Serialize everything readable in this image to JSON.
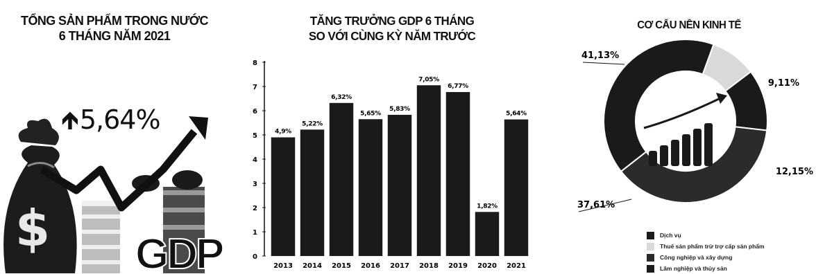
{
  "left_panel": {
    "title_line1": "TỔNG SẢN PHẨM TRONG NƯỚC",
    "title_line2": "6 THÁNG NĂM 2021",
    "growth_value": "5,64%",
    "illustration_text": "GDP",
    "money_symbol": "$"
  },
  "mid_panel": {
    "title_line1": "TĂNG TRƯỞNG GDP 6 THÁNG",
    "title_line2": "SO VỚI CÙNG KỲ NĂM TRƯỚC"
  },
  "right_panel": {
    "title": "CƠ CẤU NỀN KINH TẾ"
  },
  "chart_data": [
    {
      "type": "bar",
      "title": "TĂNG TRƯỞNG GDP 6 THÁNG SO VỚI CÙNG KỲ NĂM TRƯỚC",
      "categories": [
        "2013",
        "2014",
        "2015",
        "2016",
        "2017",
        "2018",
        "2019",
        "2020",
        "2021"
      ],
      "values": [
        4.9,
        5.22,
        6.32,
        5.65,
        5.83,
        7.05,
        6.77,
        1.82,
        5.64
      ],
      "data_labels": [
        "4,9%",
        "5,22%",
        "6,32%",
        "5,65%",
        "5,83%",
        "7,05%",
        "6,77%",
        "1,82%",
        "5,64%"
      ],
      "yticks": [
        "0",
        "1",
        "2",
        "3",
        "4",
        "5",
        "6",
        "7",
        "8"
      ],
      "ylim": [
        0,
        8
      ],
      "grid": false,
      "bar_color": "#1a1a1a"
    },
    {
      "type": "pie",
      "title": "CƠ CẤU NỀN KINH TẾ",
      "donut": true,
      "slices": [
        {
          "name": "Dịch vụ",
          "value": 41.13,
          "label": "41,13%",
          "color": "#1a1a1a"
        },
        {
          "name": "Thuế sản phẩm trừ trợ cấp sản phẩm",
          "value": 9.11,
          "label": "9,11%",
          "color": "#d9d9d9"
        },
        {
          "name": "Công nghiệp và xây dựng",
          "value": 37.61,
          "label": "37,61%",
          "color": "#2b2b2b"
        },
        {
          "name": "Lâm nghiệp và thủy sản",
          "value": 12.15,
          "label": "12,15%",
          "color": "#1a1a1a"
        }
      ],
      "legend_position": "bottom"
    }
  ]
}
